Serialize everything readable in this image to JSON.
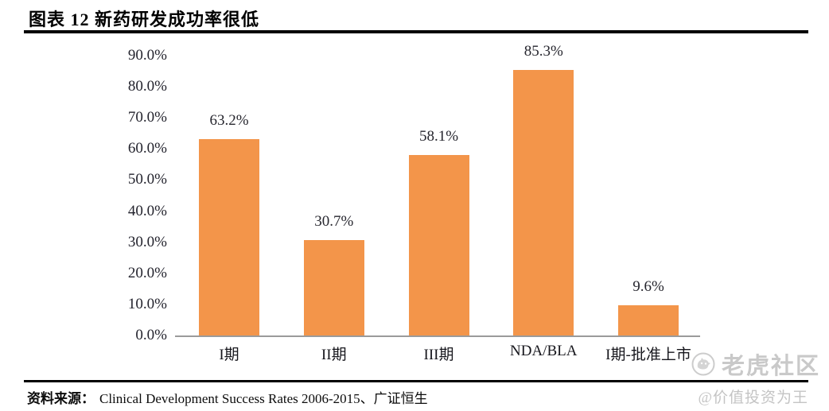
{
  "header": {
    "title": "图表 12  新药研发成功率很低"
  },
  "chart_data": {
    "type": "bar",
    "title": "图表 12 新药研发成功率很低",
    "categories": [
      "I期",
      "II期",
      "III期",
      "NDA/BLA",
      "I期-批准上市"
    ],
    "values": [
      63.2,
      30.7,
      58.1,
      85.3,
      9.6
    ],
    "data_labels": [
      "63.2%",
      "30.7%",
      "58.1%",
      "85.3%",
      "9.6%"
    ],
    "y_ticks": [
      "90.0%",
      "80.0%",
      "70.0%",
      "60.0%",
      "50.0%",
      "40.0%",
      "30.0%",
      "20.0%",
      "10.0%",
      "0.0%"
    ],
    "ylim": [
      0,
      90
    ],
    "y_tick_step": 10,
    "xlabel": "",
    "ylabel": "",
    "grid": false,
    "legend": "none",
    "bar_color": "#F3954A",
    "axis_line_color": "#9B9B9B",
    "label_color": "#26262E"
  },
  "footer": {
    "source_label": "资料来源：",
    "source_text": "Clinical Development Success Rates 2006-2015、广证恒生",
    "watermark_community": "老虎社区",
    "watermark_handle": "@价值投资为王",
    "watermark_color": "#C9C9C9"
  }
}
